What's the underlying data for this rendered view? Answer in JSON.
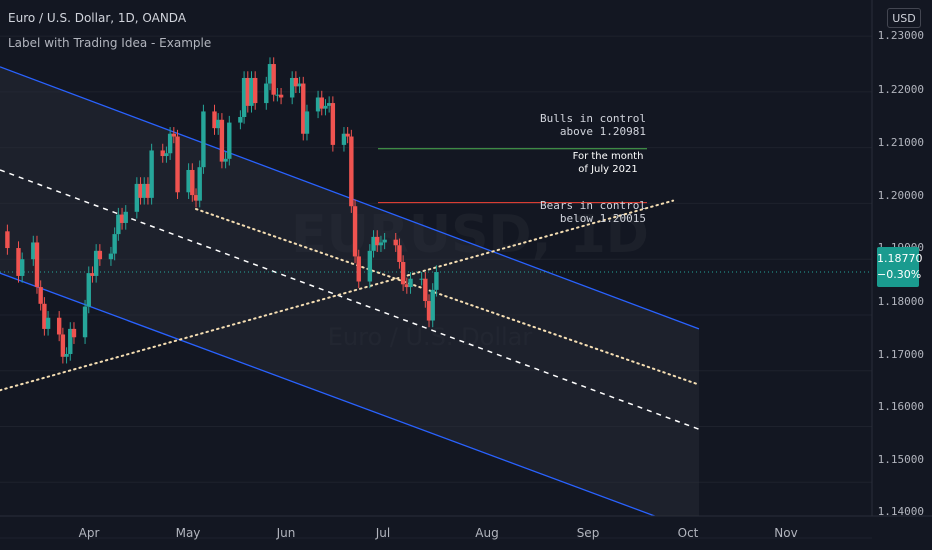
{
  "header": {
    "symbol_title": "Euro / U.S. Dollar, 1D, OANDA",
    "indicator_title": "Label with Trading Idea - Example"
  },
  "toolbar": {
    "currency_button": "USD"
  },
  "watermark": {
    "symbol": "EURUSD, 1D",
    "name": "Euro / U.S. Dollar"
  },
  "price_axis": {
    "ticks": [
      "1.23000",
      "1.22000",
      "1.21000",
      "1.20000",
      "1.19000",
      "1.18000",
      "1.17000",
      "1.16000",
      "1.15000",
      "1.14000"
    ]
  },
  "last_price": {
    "value": "1.18770",
    "change": "−0.30%"
  },
  "time_axis": {
    "ticks": [
      "Apr",
      "May",
      "Jun",
      "Jul",
      "Aug",
      "Sep",
      "Oct",
      "Nov"
    ]
  },
  "annotations": {
    "bull": {
      "line1": "Bulls in control",
      "line2": "above  1.20981",
      "level": 1.20981
    },
    "month": {
      "line1": "For the month",
      "line2": "of July 2021"
    },
    "bear": {
      "line1": "Bears in control",
      "line2": "below  1.20015",
      "level": 1.20015
    }
  },
  "colors": {
    "background": "#131722",
    "up": "#26a69a",
    "down": "#ef5350",
    "channel": "#2962ff",
    "bull_line": "#4caf50",
    "bear_line": "#f44336",
    "price_tag": "#1a9b8f"
  },
  "chart_data": {
    "type": "candlestick",
    "x_range": [
      "2021-03-13",
      "2021-11-20"
    ],
    "ylim": [
      1.14,
      1.232
    ],
    "candles": [
      {
        "d": "2021-03-15",
        "o": 1.195,
        "c": 1.192
      },
      {
        "d": "2021-03-18",
        "o": 1.192,
        "c": 1.187
      },
      {
        "d": "2021-03-19",
        "o": 1.187,
        "c": 1.19
      },
      {
        "d": "2021-03-22",
        "o": 1.19,
        "c": 1.193
      },
      {
        "d": "2021-03-23",
        "o": 1.193,
        "c": 1.185
      },
      {
        "d": "2021-03-24",
        "o": 1.185,
        "c": 1.182
      },
      {
        "d": "2021-03-25",
        "o": 1.182,
        "c": 1.1775
      },
      {
        "d": "2021-03-26",
        "o": 1.1775,
        "c": 1.1795
      },
      {
        "d": "2021-03-29",
        "o": 1.1795,
        "c": 1.1765
      },
      {
        "d": "2021-03-30",
        "o": 1.1765,
        "c": 1.1725
      },
      {
        "d": "2021-03-31",
        "o": 1.1725,
        "c": 1.173
      },
      {
        "d": "2021-04-01",
        "o": 1.173,
        "c": 1.1775
      },
      {
        "d": "2021-04-02",
        "o": 1.1775,
        "c": 1.176
      },
      {
        "d": "2021-04-05",
        "o": 1.176,
        "c": 1.1815
      },
      {
        "d": "2021-04-06",
        "o": 1.1815,
        "c": 1.1875
      },
      {
        "d": "2021-04-07",
        "o": 1.1875,
        "c": 1.187
      },
      {
        "d": "2021-04-08",
        "o": 1.187,
        "c": 1.1915
      },
      {
        "d": "2021-04-09",
        "o": 1.1915,
        "c": 1.19
      },
      {
        "d": "2021-04-12",
        "o": 1.19,
        "c": 1.191
      },
      {
        "d": "2021-04-13",
        "o": 1.191,
        "c": 1.1945
      },
      {
        "d": "2021-04-14",
        "o": 1.1945,
        "c": 1.198
      },
      {
        "d": "2021-04-15",
        "o": 1.198,
        "c": 1.1965
      },
      {
        "d": "2021-04-16",
        "o": 1.1965,
        "c": 1.1985
      },
      {
        "d": "2021-04-19",
        "o": 1.1985,
        "c": 1.2035
      },
      {
        "d": "2021-04-20",
        "o": 1.2035,
        "c": 1.201
      },
      {
        "d": "2021-04-21",
        "o": 1.201,
        "c": 1.2035
      },
      {
        "d": "2021-04-22",
        "o": 1.2035,
        "c": 1.201
      },
      {
        "d": "2021-04-23",
        "o": 1.201,
        "c": 1.2095
      },
      {
        "d": "2021-04-26",
        "o": 1.2095,
        "c": 1.2085
      },
      {
        "d": "2021-04-27",
        "o": 1.2085,
        "c": 1.209
      },
      {
        "d": "2021-04-28",
        "o": 1.209,
        "c": 1.2125
      },
      {
        "d": "2021-04-29",
        "o": 1.2125,
        "c": 1.212
      },
      {
        "d": "2021-04-30",
        "o": 1.212,
        "c": 1.202
      },
      {
        "d": "2021-05-03",
        "o": 1.202,
        "c": 1.206
      },
      {
        "d": "2021-05-04",
        "o": 1.206,
        "c": 1.2015
      },
      {
        "d": "2021-05-05",
        "o": 1.2015,
        "c": 1.2005
      },
      {
        "d": "2021-05-06",
        "o": 1.2005,
        "c": 1.2065
      },
      {
        "d": "2021-05-07",
        "o": 1.2065,
        "c": 1.2165
      },
      {
        "d": "2021-05-10",
        "o": 1.2165,
        "c": 1.2135
      },
      {
        "d": "2021-05-11",
        "o": 1.2135,
        "c": 1.215
      },
      {
        "d": "2021-05-12",
        "o": 1.215,
        "c": 1.2075
      },
      {
        "d": "2021-05-13",
        "o": 1.2075,
        "c": 1.208
      },
      {
        "d": "2021-05-14",
        "o": 1.208,
        "c": 1.2145
      },
      {
        "d": "2021-05-17",
        "o": 1.2145,
        "c": 1.2155
      },
      {
        "d": "2021-05-18",
        "o": 1.2155,
        "c": 1.2225
      },
      {
        "d": "2021-05-19",
        "o": 1.2225,
        "c": 1.2175
      },
      {
        "d": "2021-05-20",
        "o": 1.2175,
        "c": 1.2225
      },
      {
        "d": "2021-05-21",
        "o": 1.2225,
        "c": 1.218
      },
      {
        "d": "2021-05-24",
        "o": 1.218,
        "c": 1.2215
      },
      {
        "d": "2021-05-25",
        "o": 1.2215,
        "c": 1.225
      },
      {
        "d": "2021-05-26",
        "o": 1.225,
        "c": 1.2195
      },
      {
        "d": "2021-05-27",
        "o": 1.2195,
        "c": 1.2195
      },
      {
        "d": "2021-05-28",
        "o": 1.2195,
        "c": 1.219
      },
      {
        "d": "2021-05-31",
        "o": 1.219,
        "c": 1.2225
      },
      {
        "d": "2021-06-01",
        "o": 1.2225,
        "c": 1.221
      },
      {
        "d": "2021-06-02",
        "o": 1.221,
        "c": 1.2215
      },
      {
        "d": "2021-06-03",
        "o": 1.2215,
        "c": 1.2125
      },
      {
        "d": "2021-06-04",
        "o": 1.2125,
        "c": 1.2165
      },
      {
        "d": "2021-06-07",
        "o": 1.2165,
        "c": 1.219
      },
      {
        "d": "2021-06-08",
        "o": 1.219,
        "c": 1.217
      },
      {
        "d": "2021-06-09",
        "o": 1.217,
        "c": 1.2175
      },
      {
        "d": "2021-06-10",
        "o": 1.2175,
        "c": 1.218
      },
      {
        "d": "2021-06-11",
        "o": 1.218,
        "c": 1.2105
      },
      {
        "d": "2021-06-14",
        "o": 1.2105,
        "c": 1.2125
      },
      {
        "d": "2021-06-15",
        "o": 1.2125,
        "c": 1.212
      },
      {
        "d": "2021-06-16",
        "o": 1.212,
        "c": 1.1995
      },
      {
        "d": "2021-06-17",
        "o": 1.1995,
        "c": 1.1905
      },
      {
        "d": "2021-06-18",
        "o": 1.1905,
        "c": 1.186
      },
      {
        "d": "2021-06-21",
        "o": 1.186,
        "c": 1.1915
      },
      {
        "d": "2021-06-22",
        "o": 1.1915,
        "c": 1.194
      },
      {
        "d": "2021-06-23",
        "o": 1.194,
        "c": 1.1925
      },
      {
        "d": "2021-06-24",
        "o": 1.1925,
        "c": 1.193
      },
      {
        "d": "2021-06-25",
        "o": 1.193,
        "c": 1.1935
      },
      {
        "d": "2021-06-28",
        "o": 1.1935,
        "c": 1.1925
      },
      {
        "d": "2021-06-29",
        "o": 1.1925,
        "c": 1.1895
      },
      {
        "d": "2021-06-30",
        "o": 1.1895,
        "c": 1.1855
      },
      {
        "d": "2021-07-01",
        "o": 1.1855,
        "c": 1.185
      },
      {
        "d": "2021-07-02",
        "o": 1.185,
        "c": 1.1865
      },
      {
        "d": "2021-07-05",
        "o": 1.1865,
        "c": 1.1865
      },
      {
        "d": "2021-07-06",
        "o": 1.1865,
        "c": 1.1825
      },
      {
        "d": "2021-07-07",
        "o": 1.1825,
        "c": 1.179
      },
      {
        "d": "2021-07-08",
        "o": 1.179,
        "c": 1.1845
      },
      {
        "d": "2021-07-09",
        "o": 1.1845,
        "c": 1.1877
      }
    ],
    "channel": {
      "upper": [
        [
          "2021-03-13",
          1.2245
        ],
        [
          "2021-09-18",
          1.1775
        ]
      ],
      "middle": [
        [
          "2021-03-13",
          1.206
        ],
        [
          "2021-09-18",
          1.1595
        ]
      ],
      "lower": [
        [
          "2021-03-13",
          1.1875
        ],
        [
          "2021-09-18",
          1.141
        ]
      ]
    },
    "dotted_lines": [
      [
        [
          "2021-03-13",
          1.1665
        ],
        [
          "2021-09-11",
          1.2005
        ]
      ],
      [
        [
          "2021-05-05",
          1.199
        ],
        [
          "2021-09-18",
          1.1675
        ]
      ]
    ]
  }
}
